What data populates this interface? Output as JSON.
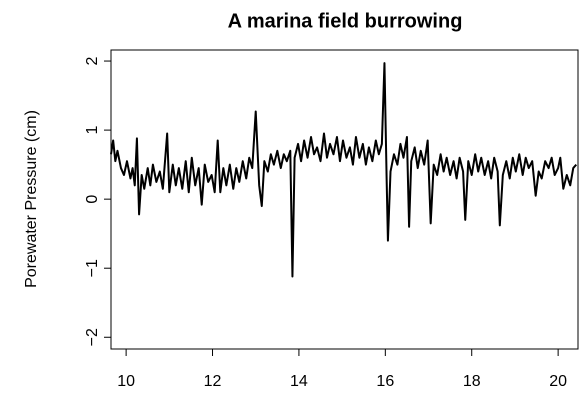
{
  "chart_data": {
    "type": "line",
    "title": "A marina field burrowing",
    "y_label": "Porewater Pressure (cm)",
    "x": [
      9.65,
      9.7,
      9.75,
      9.8,
      9.88,
      9.95,
      10.02,
      10.1,
      10.15,
      10.2,
      10.25,
      10.3,
      10.36,
      10.42,
      10.5,
      10.56,
      10.62,
      10.7,
      10.78,
      10.85,
      10.95,
      11.0,
      11.08,
      11.15,
      11.22,
      11.3,
      11.38,
      11.45,
      11.52,
      11.6,
      11.68,
      11.75,
      11.82,
      11.9,
      11.98,
      12.05,
      12.12,
      12.18,
      12.25,
      12.32,
      12.4,
      12.48,
      12.55,
      12.62,
      12.7,
      12.78,
      12.85,
      12.92,
      13.0,
      13.08,
      13.14,
      13.2,
      13.28,
      13.35,
      13.42,
      13.5,
      13.58,
      13.65,
      13.72,
      13.8,
      13.85,
      13.9,
      13.98,
      14.05,
      14.12,
      14.2,
      14.28,
      14.35,
      14.42,
      14.5,
      14.58,
      14.65,
      14.72,
      14.8,
      14.88,
      14.95,
      15.02,
      15.1,
      15.18,
      15.25,
      15.32,
      15.4,
      15.48,
      15.55,
      15.62,
      15.7,
      15.78,
      15.85,
      15.92,
      15.98,
      16.03,
      16.06,
      16.12,
      16.2,
      16.28,
      16.35,
      16.42,
      16.5,
      16.55,
      16.6,
      16.68,
      16.75,
      16.82,
      16.9,
      16.98,
      17.05,
      17.12,
      17.2,
      17.28,
      17.35,
      17.42,
      17.5,
      17.58,
      17.65,
      17.72,
      17.8,
      17.85,
      17.92,
      18.0,
      18.08,
      18.15,
      18.22,
      18.3,
      18.38,
      18.45,
      18.52,
      18.6,
      18.65,
      18.72,
      18.8,
      18.88,
      18.95,
      19.02,
      19.1,
      19.18,
      19.25,
      19.32,
      19.4,
      19.48,
      19.55,
      19.62,
      19.7,
      19.78,
      19.85,
      19.92,
      20.0,
      20.05,
      20.12,
      20.2,
      20.28,
      20.35,
      20.42
    ],
    "values": [
      0.65,
      0.85,
      0.55,
      0.7,
      0.45,
      0.35,
      0.55,
      0.3,
      0.45,
      0.2,
      0.88,
      -0.22,
      0.35,
      0.15,
      0.45,
      0.2,
      0.5,
      0.25,
      0.4,
      0.15,
      0.95,
      0.1,
      0.5,
      0.2,
      0.45,
      0.15,
      0.55,
      0.1,
      0.6,
      0.2,
      0.45,
      -0.08,
      0.5,
      0.25,
      0.35,
      0.1,
      0.85,
      0.1,
      0.45,
      0.2,
      0.5,
      0.15,
      0.45,
      0.25,
      0.55,
      0.3,
      0.6,
      0.45,
      1.27,
      0.2,
      -0.1,
      0.55,
      0.4,
      0.65,
      0.5,
      0.7,
      0.45,
      0.65,
      0.55,
      0.7,
      -1.12,
      0.6,
      0.8,
      0.55,
      0.85,
      0.6,
      0.9,
      0.65,
      0.75,
      0.55,
      0.95,
      0.6,
      0.8,
      0.65,
      0.9,
      0.55,
      0.85,
      0.6,
      0.75,
      0.5,
      0.9,
      0.6,
      0.8,
      0.5,
      0.75,
      0.55,
      0.85,
      0.65,
      0.8,
      1.97,
      0.3,
      -0.6,
      0.4,
      0.65,
      0.5,
      0.8,
      0.6,
      0.9,
      -0.4,
      0.55,
      0.75,
      0.45,
      0.7,
      0.5,
      0.85,
      -0.35,
      0.5,
      0.35,
      0.65,
      0.4,
      0.6,
      0.35,
      0.55,
      0.3,
      0.6,
      0.4,
      -0.3,
      0.55,
      0.35,
      0.65,
      0.4,
      0.6,
      0.35,
      0.55,
      0.3,
      0.6,
      0.4,
      -0.38,
      0.35,
      0.55,
      0.3,
      0.6,
      0.4,
      0.65,
      0.35,
      0.6,
      0.45,
      0.55,
      0.05,
      0.4,
      0.3,
      0.55,
      0.45,
      0.6,
      0.35,
      0.45,
      0.6,
      0.15,
      0.35,
      0.2,
      0.45,
      0.5
    ],
    "color": "#000000",
    "xlim": [
      9.65,
      20.46
    ],
    "xticks": [
      10,
      12,
      14,
      16,
      18,
      20
    ],
    "ylim": [
      -2.17,
      2.16
    ],
    "yticks": [
      {
        "value": -2,
        "label": "−2"
      },
      {
        "value": -1,
        "label": "−1"
      },
      0,
      1,
      2
    ]
  }
}
